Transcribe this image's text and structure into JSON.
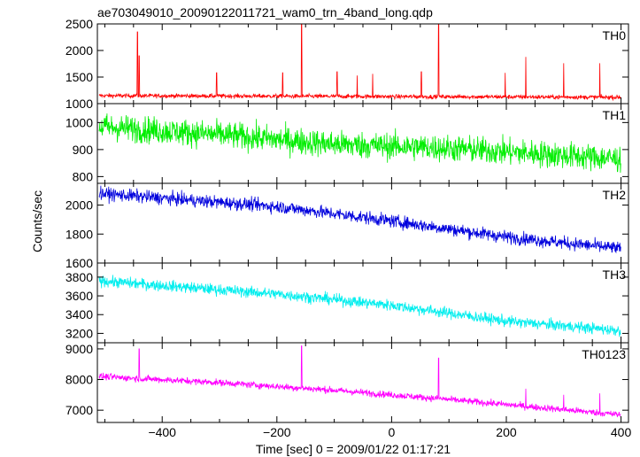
{
  "chart_data": {
    "type": "line",
    "title": "ae703049010_20090122011721_wam0_trn_4band_long.qdp",
    "xlabel": "Time [sec] 0 = 2009/01/22 01:17:21",
    "ylabel": "Counts/sec",
    "xlim": [
      -513,
      413
    ],
    "x_ticks": [
      -400,
      -200,
      0,
      200,
      400
    ],
    "panels": [
      {
        "name": "TH0",
        "color": "#ff0000",
        "ylim": [
          1000,
          2500
        ],
        "y_ticks": [
          1000,
          1500,
          2000,
          2500
        ],
        "baseline": [
          [
            -510,
            1150
          ],
          [
            400,
            1120
          ]
        ],
        "noise": 40,
        "spikes": [
          [
            -443,
            2350
          ],
          [
            -440,
            1900
          ],
          [
            -305,
            1580
          ],
          [
            -190,
            1580
          ],
          [
            -157,
            2500
          ],
          [
            -95,
            1600
          ],
          [
            -60,
            1530
          ],
          [
            -33,
            1560
          ],
          [
            52,
            1600
          ],
          [
            82,
            2500
          ],
          [
            198,
            1580
          ],
          [
            234,
            1880
          ],
          [
            300,
            1760
          ],
          [
            363,
            1760
          ]
        ]
      },
      {
        "name": "TH1",
        "color": "#00ee00",
        "ylim": [
          775,
          1070
        ],
        "y_ticks": [
          800,
          900,
          1000
        ],
        "baseline": [
          [
            -510,
            985
          ],
          [
            -300,
            955
          ],
          [
            -100,
            920
          ],
          [
            100,
            905
          ],
          [
            400,
            865
          ]
        ],
        "noise": 50,
        "spikes": []
      },
      {
        "name": "TH2",
        "color": "#0000dd",
        "ylim": [
          1600,
          2150
        ],
        "y_ticks": [
          1600,
          1800,
          2000
        ],
        "baseline": [
          [
            -510,
            2080
          ],
          [
            -200,
            1990
          ],
          [
            0,
            1890
          ],
          [
            200,
            1780
          ],
          [
            400,
            1700
          ]
        ],
        "noise": 45,
        "spikes": []
      },
      {
        "name": "TH3",
        "color": "#00eeee",
        "ylim": [
          3100,
          3950
        ],
        "y_ticks": [
          3200,
          3400,
          3600,
          3800
        ],
        "baseline": [
          [
            -510,
            3760
          ],
          [
            -200,
            3620
          ],
          [
            0,
            3500
          ],
          [
            200,
            3330
          ],
          [
            400,
            3230
          ]
        ],
        "noise": 60,
        "spikes": []
      },
      {
        "name": "TH0123",
        "color": "#ff00ff",
        "ylim": [
          6600,
          9200
        ],
        "y_ticks": [
          7000,
          8000,
          9000
        ],
        "baseline": [
          [
            -510,
            8100
          ],
          [
            -300,
            7900
          ],
          [
            -100,
            7650
          ],
          [
            100,
            7350
          ],
          [
            400,
            6850
          ]
        ],
        "noise": 110,
        "spikes": [
          [
            -440,
            9000
          ],
          [
            -157,
            9100
          ],
          [
            82,
            8700
          ],
          [
            234,
            7700
          ],
          [
            300,
            7500
          ],
          [
            363,
            7550
          ]
        ]
      }
    ]
  }
}
